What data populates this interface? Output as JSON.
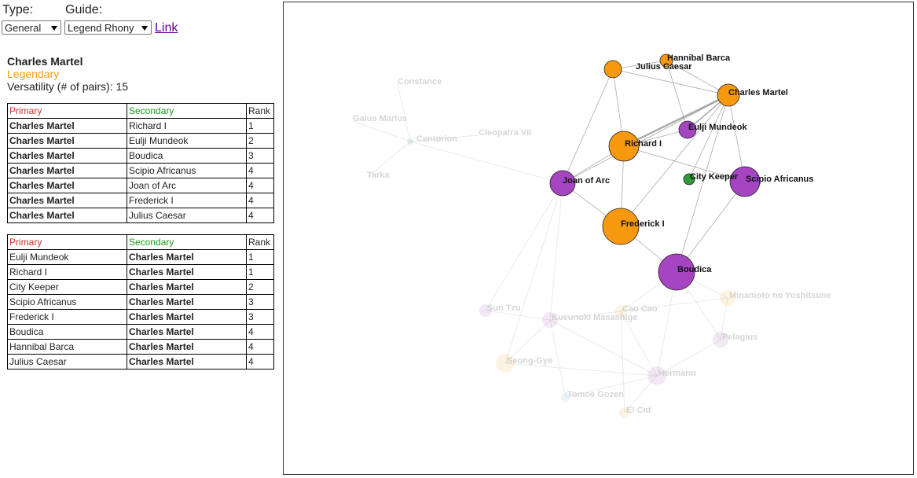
{
  "controls": {
    "type_label": "Type:",
    "guide_label": "Guide:",
    "type_select": "General",
    "guide_select": "Legend Rhony",
    "link": "Link"
  },
  "commander": {
    "name": "Charles Martel",
    "rarity": "Legendary",
    "versatility_label": "Versatility (# of pairs):",
    "versatility": 15
  },
  "tables": [
    {
      "header": [
        "Primary",
        "Secondary",
        "Rank"
      ],
      "rows": [
        [
          "Charles Martel",
          "Richard I",
          1
        ],
        [
          "Charles Martel",
          "Eulji Mundeok",
          2
        ],
        [
          "Charles Martel",
          "Boudica",
          3
        ],
        [
          "Charles Martel",
          "Scipio Africanus",
          4
        ],
        [
          "Charles Martel",
          "Joan of Arc",
          4
        ],
        [
          "Charles Martel",
          "Frederick I",
          4
        ],
        [
          "Charles Martel",
          "Julius Caesar",
          4
        ]
      ]
    },
    {
      "header": [
        "Primary",
        "Secondary",
        "Rank"
      ],
      "rows": [
        [
          "Eulji Mundeok",
          "Charles Martel",
          1
        ],
        [
          "Richard I",
          "Charles Martel",
          1
        ],
        [
          "City Keeper",
          "Charles Martel",
          2
        ],
        [
          "Scipio Africanus",
          "Charles Martel",
          3
        ],
        [
          "Frederick I",
          "Charles Martel",
          3
        ],
        [
          "Boudica",
          "Charles Martel",
          4
        ],
        [
          "Hannibal Barca",
          "Charles Martel",
          4
        ],
        [
          "Julius Caesar",
          "Charles Martel",
          4
        ]
      ]
    }
  ],
  "graph": {
    "nodes": [
      {
        "label": "Charles Martel"
      },
      {
        "label": "Hannibal Barca"
      },
      {
        "label": "Julius Caesar"
      },
      {
        "label": "Eulji Mundeok"
      },
      {
        "label": "Richard I"
      },
      {
        "label": "City Keeper"
      },
      {
        "label": "Scipio Africanus"
      },
      {
        "label": "Joan of Arc"
      },
      {
        "label": "Frederick I"
      },
      {
        "label": "Boudica"
      },
      {
        "label": "Constance"
      },
      {
        "label": "Gaius Marius"
      },
      {
        "label": "Centurion"
      },
      {
        "label": "Cleopatra VII"
      },
      {
        "label": "Tarka"
      },
      {
        "label": "Sun Tzu"
      },
      {
        "label": "Kusunoki Masashige"
      },
      {
        "label": "Cao Cao"
      },
      {
        "label": "Minamoto no Yoshitsune"
      },
      {
        "label": "Pelagius"
      },
      {
        "label": "Seong-Gye"
      },
      {
        "label": "Hermann"
      },
      {
        "label": "Tomoe Gozen"
      },
      {
        "label": "El Cid"
      }
    ]
  }
}
